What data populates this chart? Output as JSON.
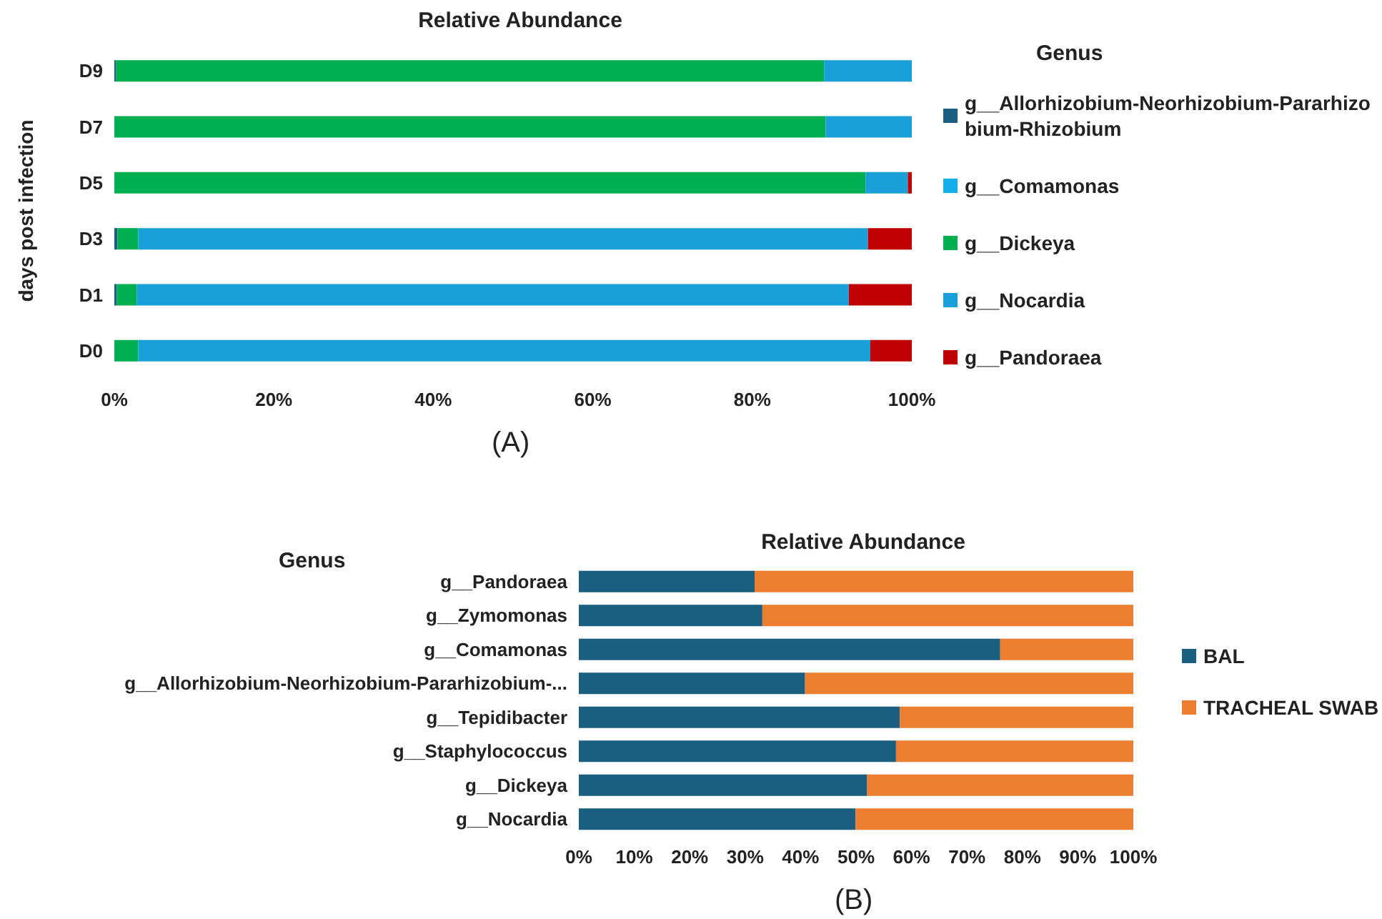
{
  "chart_data": [
    {
      "type": "bar",
      "orientation": "horizontal",
      "stacked": true,
      "title": "Relative Abundance",
      "ylabel": "days post infection",
      "legend_title": "Genus",
      "legend": "right",
      "grid": false,
      "annotations": [
        "(A)"
      ],
      "categories": [
        "D9",
        "D7",
        "D5",
        "D3",
        "D1",
        "D0"
      ],
      "xlim": [
        0,
        100
      ],
      "xticks": [
        {
          "value": 0,
          "label": "0%"
        },
        {
          "value": 20,
          "label": "20%"
        },
        {
          "value": 40,
          "label": "40%"
        },
        {
          "value": 60,
          "label": "60%"
        },
        {
          "value": 80,
          "label": "80%"
        },
        {
          "value": 100,
          "label": "100%"
        }
      ],
      "series": [
        {
          "name": "g__Allorhizobium-Neorhizobium-Pararhizobium-Rhizobium",
          "color": "#1a5f80",
          "values": [
            0.2,
            0,
            0,
            0.4,
            0.3,
            0
          ]
        },
        {
          "name": "g__Comamonas",
          "color": "#12b0ea",
          "values": [
            0,
            0,
            0,
            0,
            0,
            0
          ]
        },
        {
          "name": "g__Dickeya",
          "color": "#00b050",
          "values": [
            88.8,
            89.2,
            94.2,
            2.6,
            2.5,
            3.0
          ]
        },
        {
          "name": "g__Nocardia",
          "color": "#1a9fd8",
          "values": [
            11.0,
            10.8,
            5.3,
            91.5,
            89.3,
            91.8
          ]
        },
        {
          "name": "g__Pandoraea",
          "color": "#c00000",
          "values": [
            0,
            0,
            0.5,
            5.5,
            7.9,
            5.2
          ]
        }
      ]
    },
    {
      "type": "bar",
      "orientation": "horizontal",
      "stacked": true,
      "title": "Relative Abundance",
      "ylabel": "Genus",
      "legend": "right",
      "grid": false,
      "annotations": [
        "(B)"
      ],
      "categories": [
        "g__Pandoraea",
        "g__Zymomonas",
        "g__Comamonas",
        "g__Allorhizobium-Neorhizobium-Pararhizobium-...",
        "g__Tepidibacter",
        "g__Staphylococcus",
        "g__Dickeya",
        "g__Nocardia"
      ],
      "xlim": [
        0,
        100
      ],
      "xticks": [
        {
          "value": 0,
          "label": "0%"
        },
        {
          "value": 10,
          "label": "10%"
        },
        {
          "value": 20,
          "label": "20%"
        },
        {
          "value": 30,
          "label": "30%"
        },
        {
          "value": 40,
          "label": "40%"
        },
        {
          "value": 50,
          "label": "50%"
        },
        {
          "value": 60,
          "label": "60%"
        },
        {
          "value": 70,
          "label": "70%"
        },
        {
          "value": 80,
          "label": "80%"
        },
        {
          "value": 90,
          "label": "90%"
        },
        {
          "value": 100,
          "label": "100%"
        }
      ],
      "series": [
        {
          "name": "BAL",
          "color": "#1a5f80",
          "values": [
            31.7,
            33.1,
            76.0,
            40.8,
            57.9,
            57.2,
            52.0,
            49.9
          ]
        },
        {
          "name": "TRACHEAL SWAB",
          "color": "#ed7d31",
          "values": [
            68.3,
            66.9,
            24.0,
            59.2,
            42.1,
            42.8,
            48.0,
            50.1
          ]
        }
      ]
    }
  ]
}
